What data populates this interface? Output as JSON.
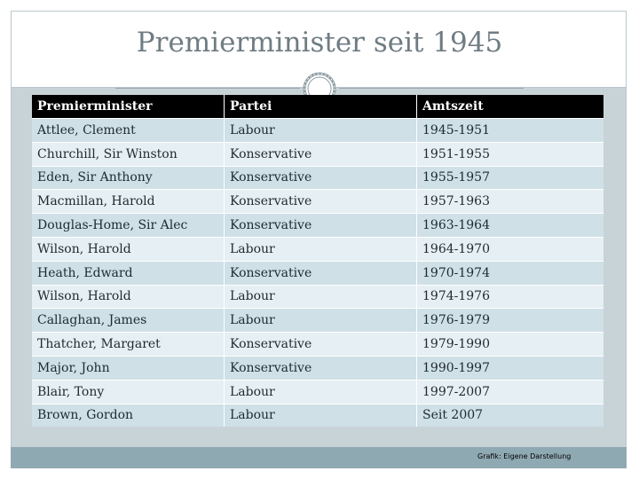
{
  "title": "Premierminister seit 1945",
  "table": {
    "headers": [
      "Premierminister",
      "Partei",
      "Amtszeit"
    ],
    "rows": [
      {
        "name": "Attlee, Clement",
        "party": "Labour",
        "term": "1945-1951"
      },
      {
        "name": "Churchill, Sir Winston",
        "party": "Konservative",
        "term": "1951-1955"
      },
      {
        "name": "Eden, Sir Anthony",
        "party": "Konservative",
        "term": "1955-1957"
      },
      {
        "name": "Macmillan, Harold",
        "party": "Konservative",
        "term": "1957-1963"
      },
      {
        "name": "Douglas-Home, Sir Alec",
        "party": "Konservative",
        "term": "1963-1964"
      },
      {
        "name": "Wilson, Harold",
        "party": "Labour",
        "term": "1964-1970"
      },
      {
        "name": "Heath, Edward",
        "party": "Konservative",
        "term": "1970-1974"
      },
      {
        "name": "Wilson, Harold",
        "party": "Labour",
        "term": "1974-1976"
      },
      {
        "name": "Callaghan, James",
        "party": "Labour",
        "term": "1976-1979"
      },
      {
        "name": "Thatcher, Margaret",
        "party": "Konservative",
        "term": "1979-1990"
      },
      {
        "name": "Major, John",
        "party": "Konservative",
        "term": "1990-1997"
      },
      {
        "name": "Blair, Tony",
        "party": "Labour",
        "term": "1997-2007"
      },
      {
        "name": "Brown, Gordon",
        "party": "Labour",
        "term": "Seit 2007"
      }
    ]
  },
  "caption": "Grafik: Eigene Darstellung",
  "colors": {
    "header_bg": "#000000",
    "row_odd": "#cfe0e7",
    "row_even": "#e6eff3",
    "title": "#6f7c83",
    "footer_bar": "#8fa9b3"
  },
  "icons": {
    "ornament": "rope-ring-ornament"
  }
}
